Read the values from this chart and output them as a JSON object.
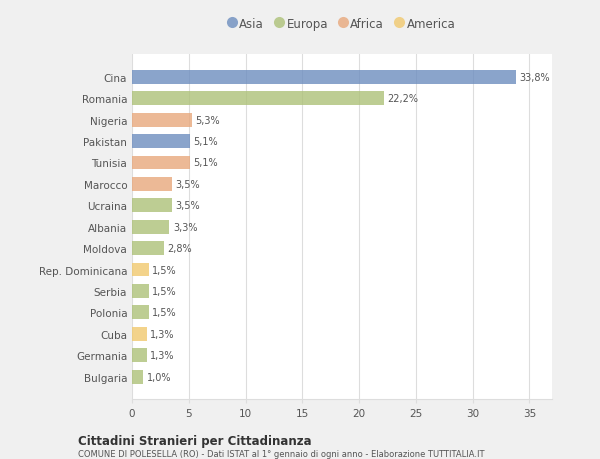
{
  "countries": [
    "Cina",
    "Romania",
    "Nigeria",
    "Pakistan",
    "Tunisia",
    "Marocco",
    "Ucraina",
    "Albania",
    "Moldova",
    "Rep. Dominicana",
    "Serbia",
    "Polonia",
    "Cuba",
    "Germania",
    "Bulgaria"
  ],
  "values": [
    33.8,
    22.2,
    5.3,
    5.1,
    5.1,
    3.5,
    3.5,
    3.3,
    2.8,
    1.5,
    1.5,
    1.5,
    1.3,
    1.3,
    1.0
  ],
  "labels": [
    "33,8%",
    "22,2%",
    "5,3%",
    "5,1%",
    "5,1%",
    "3,5%",
    "3,5%",
    "3,3%",
    "2,8%",
    "1,5%",
    "1,5%",
    "1,5%",
    "1,3%",
    "1,3%",
    "1,0%"
  ],
  "colors": [
    "#6d8ebf",
    "#adc178",
    "#e8a87c",
    "#6d8ebf",
    "#e8a87c",
    "#e8a87c",
    "#adc178",
    "#adc178",
    "#adc178",
    "#f0c96e",
    "#adc178",
    "#adc178",
    "#f0c96e",
    "#adc178",
    "#adc178"
  ],
  "legend_labels": [
    "Asia",
    "Europa",
    "Africa",
    "America"
  ],
  "legend_colors": [
    "#6d8ebf",
    "#adc178",
    "#e8a87c",
    "#f0c96e"
  ],
  "title": "Cittadini Stranieri per Cittadinanza",
  "subtitle": "COMUNE DI POLESELLA (RO) - Dati ISTAT al 1° gennaio di ogni anno - Elaborazione TUTTITALIA.IT",
  "xlim": [
    0,
    37
  ],
  "xticks": [
    0,
    5,
    10,
    15,
    20,
    25,
    30,
    35
  ],
  "bg_color": "#f0f0f0",
  "plot_bg_color": "#ffffff",
  "grid_color": "#dddddd",
  "text_color": "#555555",
  "bar_height": 0.65
}
